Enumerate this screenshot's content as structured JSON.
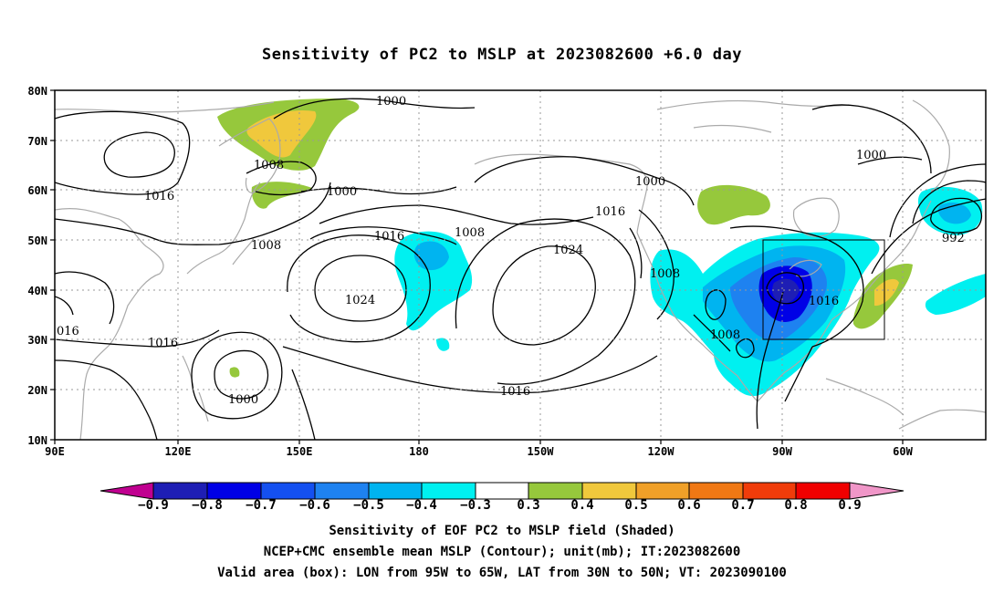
{
  "title": "Sensitivity of PC2 to MSLP at 2023082600 +6.0 day",
  "lat_ticks": [
    "80N",
    "70N",
    "60N",
    "50N",
    "40N",
    "30N",
    "20N",
    "10N"
  ],
  "lon_ticks": [
    "90E",
    "120E",
    "150E",
    "180",
    "150W",
    "120W",
    "90W",
    "60W"
  ],
  "contour_labels": [
    "1000",
    "1008",
    "1016",
    "1000",
    "1016",
    "1008",
    "1016",
    "1008",
    "1024",
    "1024",
    "1016",
    "1000",
    "1016",
    "1000",
    "1008",
    "1016",
    "1000",
    "992",
    "1008",
    "1008",
    "016",
    "1000"
  ],
  "colorbar": {
    "labels": [
      "−0.9",
      "−0.8",
      "−0.7",
      "−0.6",
      "−0.5",
      "−0.4",
      "−0.3",
      "0.3",
      "0.4",
      "0.5",
      "0.6",
      "0.7",
      "0.8",
      "0.9"
    ],
    "colors": [
      "#c00090",
      "#1e1eb4",
      "#0000e6",
      "#1450f0",
      "#1e82f0",
      "#00b4f0",
      "#00f0f0",
      "#ffffff",
      "#96c83c",
      "#f0c83c",
      "#f0a028",
      "#f07814",
      "#f03c0a",
      "#f00000",
      "#f096c8"
    ]
  },
  "captions": [
    "Sensitivity of EOF PC2 to MSLP field (Shaded)",
    "NCEP+CMC ensemble mean MSLP (Contour); unit(mb); IT:2023082600",
    "Valid area (box): LON from 95W to 65W, LAT from 30N to 50N; VT: 2023090100"
  ]
}
